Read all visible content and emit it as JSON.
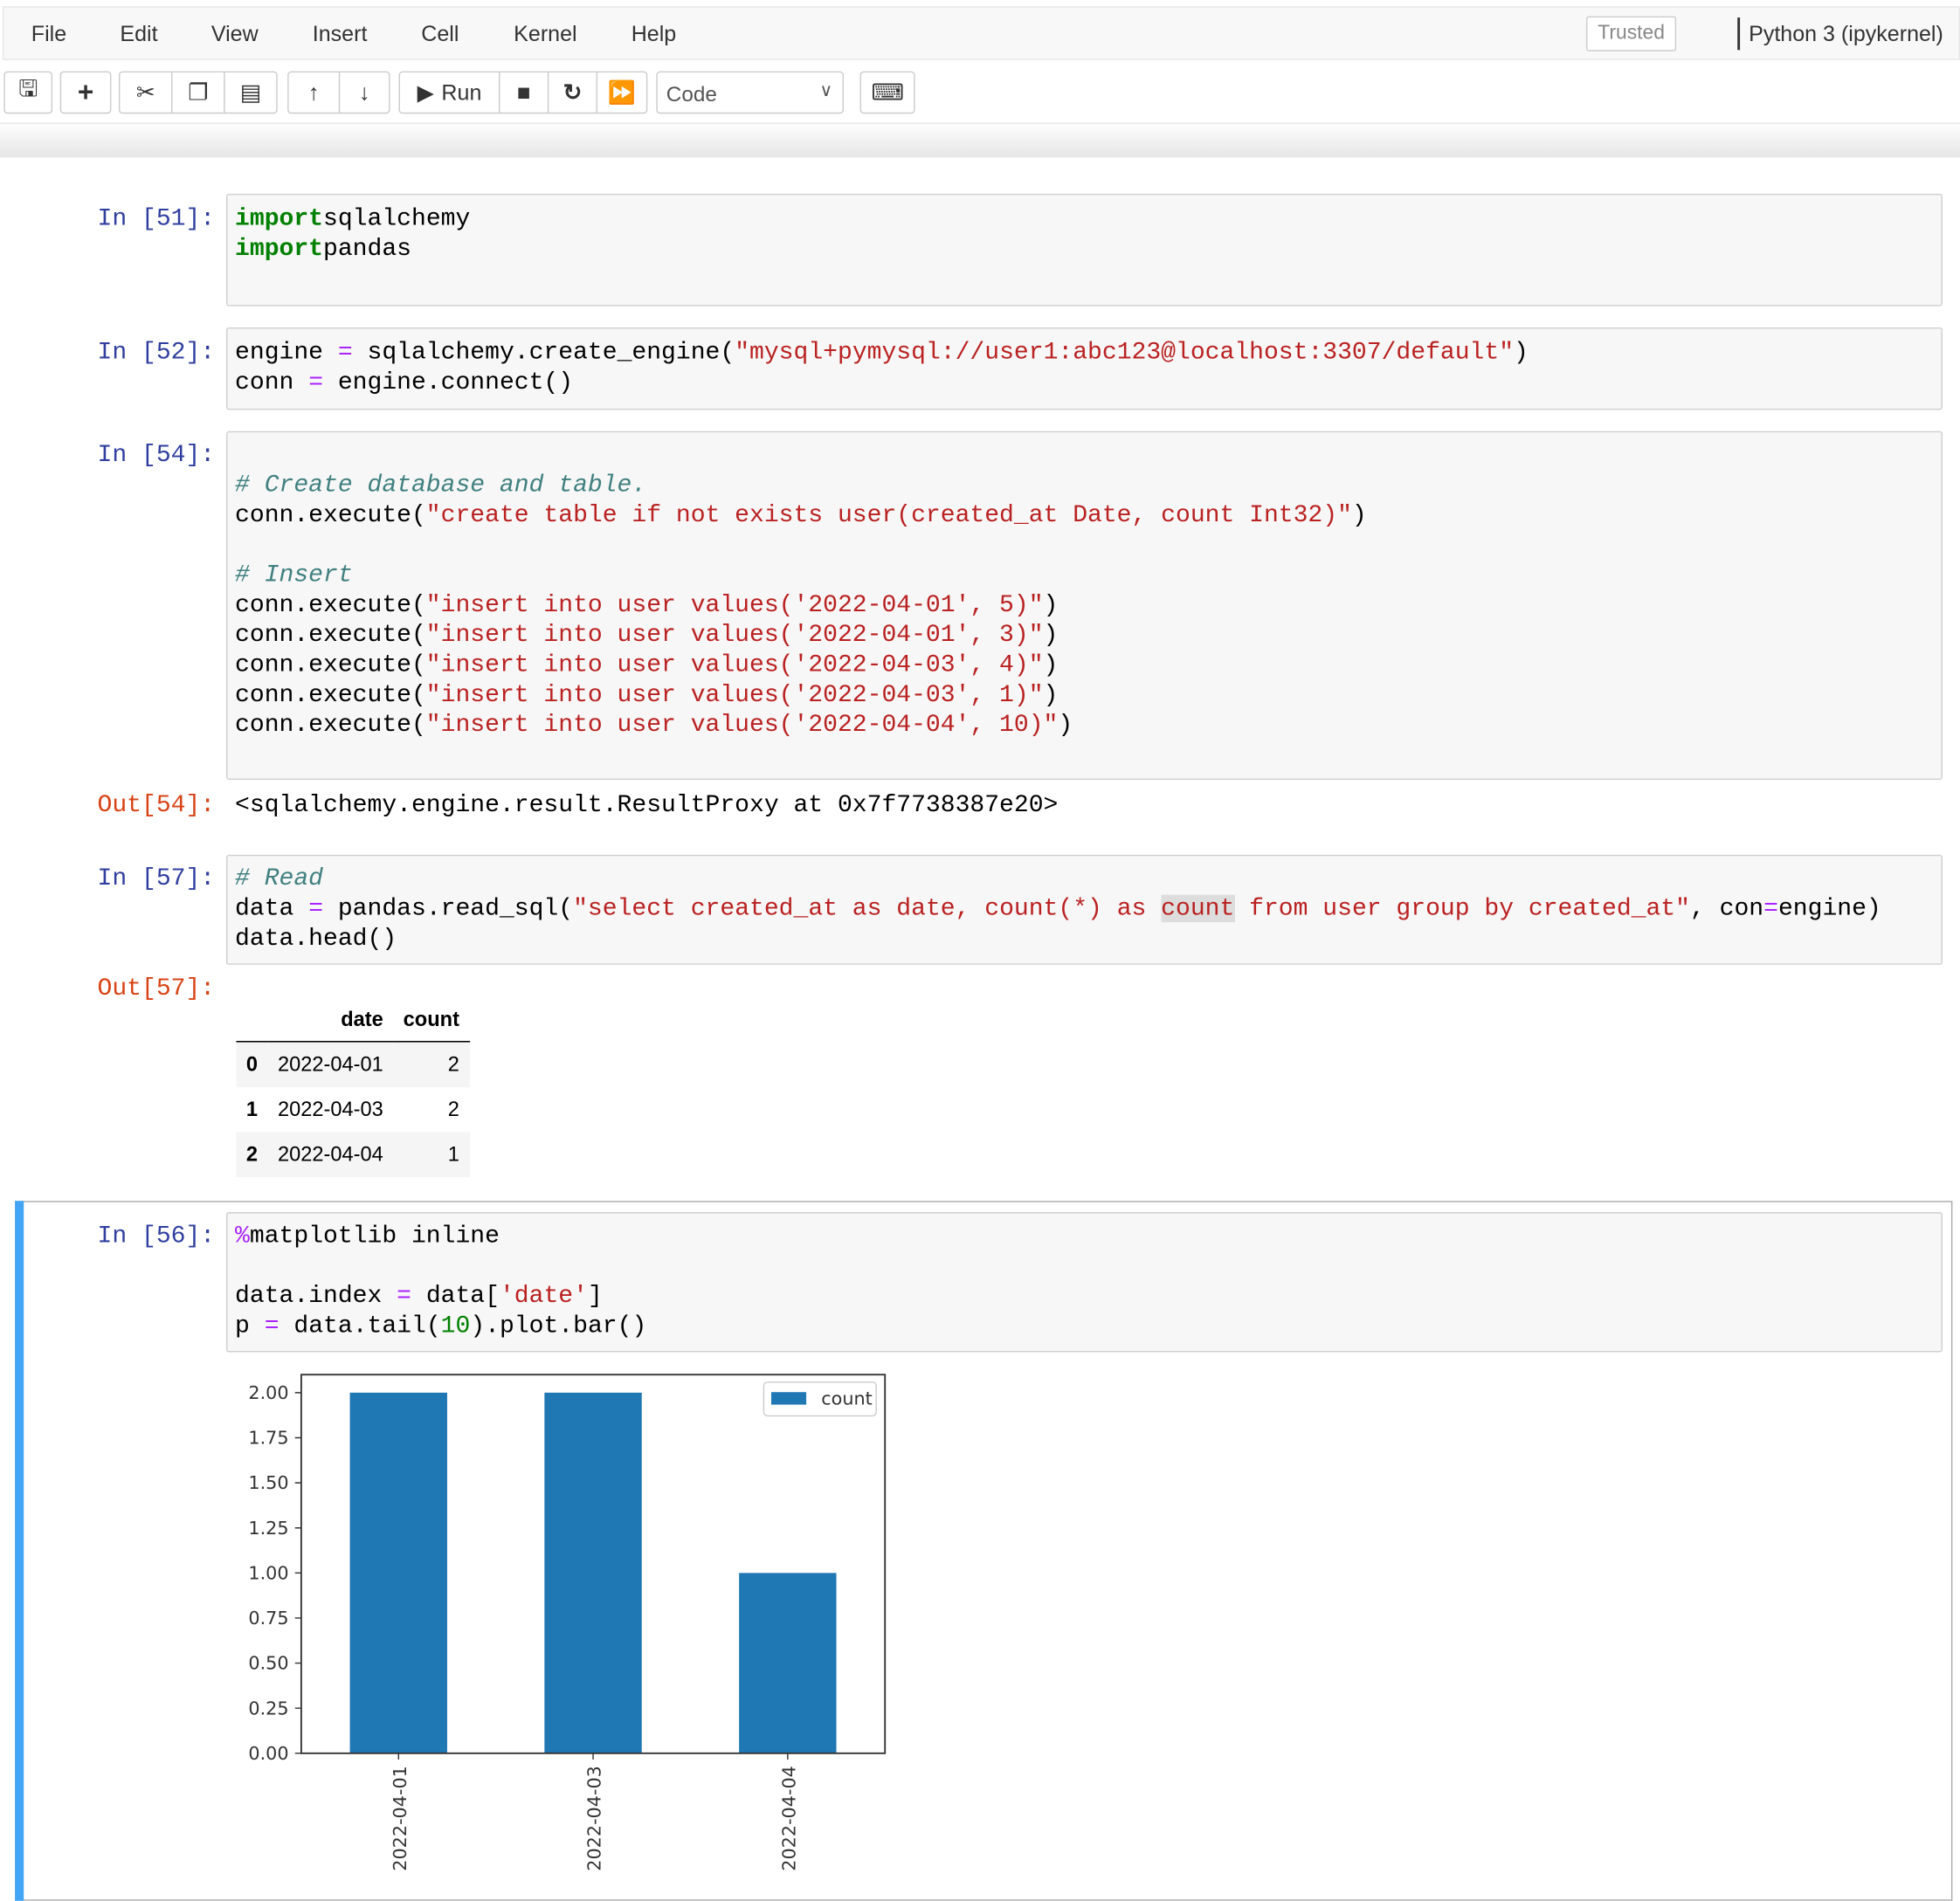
{
  "menubar": {
    "items": [
      "File",
      "Edit",
      "View",
      "Insert",
      "Cell",
      "Kernel",
      "Help"
    ],
    "trusted": "Trusted",
    "kernel": "Python 3 (ipykernel)"
  },
  "toolbar": {
    "run_label": "Run",
    "cell_type": "Code",
    "icons": [
      "save-icon",
      "plus-icon",
      "scissors-icon",
      "copy-icon",
      "paste-icon",
      "arrow-up-icon",
      "arrow-down-icon",
      "play-icon",
      "stop-icon",
      "restart-icon",
      "fast-forward-icon",
      "keyboard-icon"
    ]
  },
  "cells": [
    {
      "prompt": "In [51]:",
      "lines": [
        [
          [
            "k",
            "import"
          ],
          [
            "",
            "sqlalchemy"
          ]
        ],
        [
          [
            "k",
            "import"
          ],
          [
            "",
            "pandas"
          ]
        ]
      ]
    },
    {
      "prompt": "In [52]:",
      "lines": [
        [
          [
            "",
            "engine "
          ],
          [
            "o",
            "="
          ],
          [
            "",
            " sqlalchemy.create_engine("
          ],
          [
            "s",
            "\"mysql+pymysql://user1:abc123@localhost:3307/default\""
          ],
          [
            "",
            ")"
          ]
        ],
        [
          [
            "",
            "conn "
          ],
          [
            "o",
            "="
          ],
          [
            "",
            " engine.connect()"
          ]
        ]
      ]
    },
    {
      "prompt": "In [54]:",
      "lines": [
        [],
        [
          [
            "c",
            "# Create database and table."
          ]
        ],
        [
          [
            "",
            "conn.execute("
          ],
          [
            "s",
            "\"create table if not exists user(created_at Date, count Int32)\""
          ],
          [
            "",
            ")"
          ]
        ],
        [],
        [
          [
            "c",
            "# Insert"
          ]
        ],
        [
          [
            "",
            "conn.execute("
          ],
          [
            "s",
            "\"insert into user values('2022-04-01', 5)\""
          ],
          [
            "",
            ")"
          ]
        ],
        [
          [
            "",
            "conn.execute("
          ],
          [
            "s",
            "\"insert into user values('2022-04-01', 3)\""
          ],
          [
            "",
            ")"
          ]
        ],
        [
          [
            "",
            "conn.execute("
          ],
          [
            "s",
            "\"insert into user values('2022-04-03', 4)\""
          ],
          [
            "",
            ")"
          ]
        ],
        [
          [
            "",
            "conn.execute("
          ],
          [
            "s",
            "\"insert into user values('2022-04-03', 1)\""
          ],
          [
            "",
            ")"
          ]
        ],
        [
          [
            "",
            "conn.execute("
          ],
          [
            "s",
            "\"insert into user values('2022-04-04', 10)\""
          ],
          [
            "",
            ")"
          ]
        ]
      ]
    },
    {
      "prompt": "In [57]:",
      "lines": [
        [
          [
            "c",
            "# Read"
          ]
        ],
        [
          [
            "",
            "data "
          ],
          [
            "o",
            "="
          ],
          [
            "",
            " pandas.read_sql("
          ],
          [
            "s",
            "\"select created_at as date, count(*) as "
          ],
          [
            "h",
            "count"
          ],
          [
            "s",
            " from user group by created_at\""
          ],
          [
            "",
            ", con"
          ],
          [
            "o",
            "="
          ],
          [
            "",
            "engine)"
          ]
        ],
        [
          [
            "",
            "data.head()"
          ]
        ]
      ]
    },
    {
      "prompt": "In [56]:",
      "lines": [
        [
          [
            "m",
            "%"
          ],
          [
            "",
            "matplotlib inline"
          ]
        ],
        [],
        [
          [
            "",
            "data.index "
          ],
          [
            "o",
            "="
          ],
          [
            "",
            " data["
          ],
          [
            "s",
            "'date'"
          ],
          [
            "",
            "]"
          ]
        ],
        [
          [
            "",
            "p "
          ],
          [
            "o",
            "="
          ],
          [
            "",
            " data.tail("
          ],
          [
            "n",
            "10"
          ],
          [
            "",
            ").plot.bar()"
          ]
        ]
      ]
    }
  ],
  "out54": {
    "prompt": "Out[54]:",
    "text": "<sqlalchemy.engine.result.ResultProxy at 0x7f7738387e20>"
  },
  "out57": {
    "prompt": "Out[57]:",
    "columns": [
      "",
      "date",
      "count"
    ],
    "rows": [
      [
        "0",
        "2022-04-01",
        "2"
      ],
      [
        "1",
        "2022-04-03",
        "2"
      ],
      [
        "2",
        "2022-04-04",
        "1"
      ]
    ]
  },
  "chart_data": {
    "type": "bar",
    "categories": [
      "2022-04-01",
      "2022-04-03",
      "2022-04-04"
    ],
    "series": [
      {
        "name": "count",
        "values": [
          2,
          2,
          1
        ],
        "color": "#1f77b4"
      }
    ],
    "ylim": [
      0,
      2.1
    ],
    "yticks": [
      "0.00",
      "0.25",
      "0.50",
      "0.75",
      "1.00",
      "1.25",
      "1.50",
      "1.75",
      "2.00"
    ],
    "legend": "top-right",
    "grid": false,
    "xlabel": "",
    "ylabel": ""
  }
}
